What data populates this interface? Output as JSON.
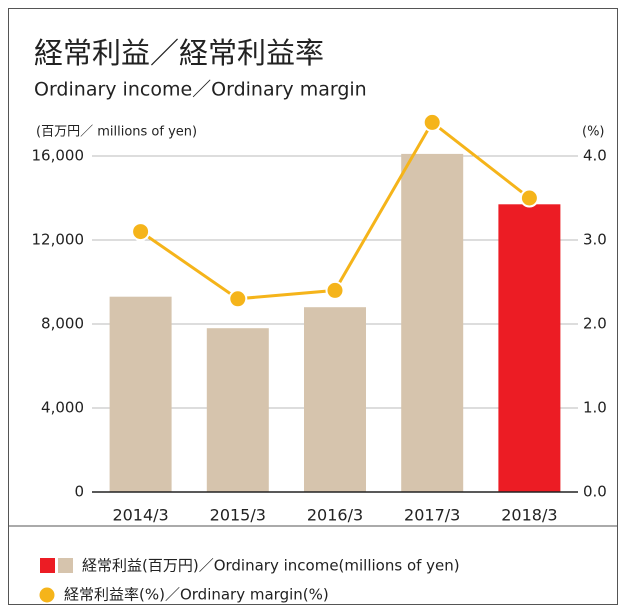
{
  "chart_data": {
    "type": "bar",
    "title": "経常利益／経常利益率",
    "subtitle": "Ordinary income／Ordinary margin",
    "y_label": "(百万円／ millions of yen)",
    "y2_label": "(%)",
    "categories": [
      "2014/3",
      "2015/3",
      "2016/3",
      "2017/3",
      "2018/3"
    ],
    "series": [
      {
        "name": "経常利益(百万円)／Ordinary income(millions of yen)",
        "type": "bar",
        "axis": "y",
        "colors": [
          "#d6c4ad",
          "#d6c4ad",
          "#d6c4ad",
          "#d6c4ad",
          "#ec1c24"
        ],
        "values": [
          9300,
          7800,
          8800,
          16100,
          13700
        ]
      },
      {
        "name": "経常利益率(%)／Ordinary margin(%)",
        "type": "line",
        "axis": "y2",
        "color": "#f5b41a",
        "values": [
          3.1,
          2.3,
          2.4,
          4.4,
          3.5
        ]
      }
    ],
    "ylim": [
      0,
      16000
    ],
    "yticks": [
      0,
      {
        "value": 4000,
        "label": "4,000"
      },
      {
        "value": 8000,
        "label": "8,000"
      },
      {
        "value": 12000,
        "label": "12,000"
      },
      {
        "value": 16000,
        "label": "16,000"
      }
    ],
    "y2lim": [
      0,
      4
    ],
    "y2ticks": [
      {
        "value": 0,
        "label": "0.0"
      },
      {
        "value": 1,
        "label": "1.0"
      },
      {
        "value": 2,
        "label": "2.0"
      },
      {
        "value": 3,
        "label": "3.0"
      },
      {
        "value": 4,
        "label": "4.0"
      }
    ],
    "grid": true
  }
}
